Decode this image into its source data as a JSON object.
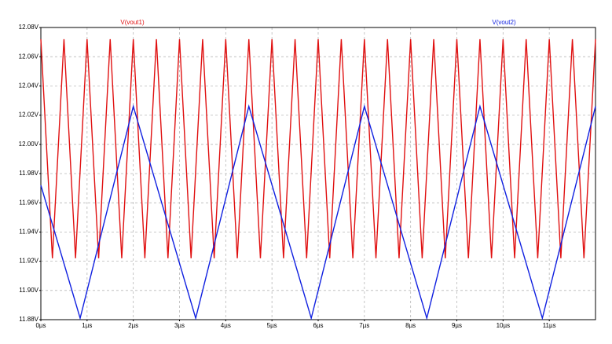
{
  "chart_data": {
    "type": "line",
    "series": [
      {
        "name": "V(vout1)",
        "color": "#e01010",
        "x": [
          0,
          0.25,
          0.5,
          0.75,
          1,
          1.25,
          1.5,
          1.75,
          2,
          2.25,
          2.5,
          2.75,
          3,
          3.25,
          3.5,
          3.75,
          4,
          4.25,
          4.5,
          4.75,
          5,
          5.25,
          5.5,
          5.75,
          6,
          6.25,
          6.5,
          6.75,
          7,
          7.25,
          7.5,
          7.75,
          8,
          8.25,
          8.5,
          8.75,
          9,
          9.25,
          9.5,
          9.75,
          10,
          10.25,
          10.5,
          10.75,
          11,
          11.25,
          11.5,
          11.75,
          12
        ],
        "values": [
          12.072,
          11.922,
          12.072,
          11.922,
          12.072,
          11.922,
          12.072,
          11.922,
          12.072,
          11.922,
          12.072,
          11.922,
          12.072,
          11.922,
          12.072,
          11.922,
          12.072,
          11.922,
          12.072,
          11.922,
          12.072,
          11.922,
          12.072,
          11.922,
          12.072,
          11.922,
          12.072,
          11.922,
          12.072,
          11.922,
          12.072,
          11.922,
          12.072,
          11.922,
          12.072,
          11.922,
          12.072,
          11.922,
          12.072,
          11.922,
          12.072,
          11.922,
          12.072,
          11.922,
          12.072,
          11.922,
          12.072,
          11.922,
          12.072
        ]
      },
      {
        "name": "V(vout2)",
        "color": "#1020e0",
        "x": [
          0,
          0.85,
          2,
          3.35,
          4.5,
          5.85,
          7,
          8.35,
          9.5,
          10.85,
          12
        ],
        "values": [
          11.972,
          11.881,
          12.026,
          11.881,
          12.026,
          11.881,
          12.026,
          11.881,
          12.026,
          11.881,
          12.026
        ]
      }
    ],
    "xlim": [
      0,
      12
    ],
    "xticks": [
      {
        "value": 0,
        "label": "0µs"
      },
      {
        "value": 1,
        "label": "1µs"
      },
      {
        "value": 2,
        "label": "2µs"
      },
      {
        "value": 3,
        "label": "3µs"
      },
      {
        "value": 4,
        "label": "4µs"
      },
      {
        "value": 5,
        "label": "5µs"
      },
      {
        "value": 6,
        "label": "6µs"
      },
      {
        "value": 7,
        "label": "7µs"
      },
      {
        "value": 8,
        "label": "8µs"
      },
      {
        "value": 9,
        "label": "9µs"
      },
      {
        "value": 10,
        "label": "10µs"
      },
      {
        "value": 11,
        "label": "11µs"
      }
    ],
    "ylim": [
      11.88,
      12.08
    ],
    "yticks": [
      {
        "value": 12.08,
        "label": "12.08V"
      },
      {
        "value": 12.06,
        "label": "12.06V"
      },
      {
        "value": 12.04,
        "label": "12.04V"
      },
      {
        "value": 12.02,
        "label": "12.02V"
      },
      {
        "value": 12.0,
        "label": "12.00V"
      },
      {
        "value": 11.98,
        "label": "11.98V"
      },
      {
        "value": 11.96,
        "label": "11.96V"
      },
      {
        "value": 11.94,
        "label": "11.94V"
      },
      {
        "value": 11.92,
        "label": "11.92V"
      },
      {
        "value": 11.9,
        "label": "11.90V"
      },
      {
        "value": 11.88,
        "label": "11.88V"
      }
    ],
    "grid": true
  }
}
